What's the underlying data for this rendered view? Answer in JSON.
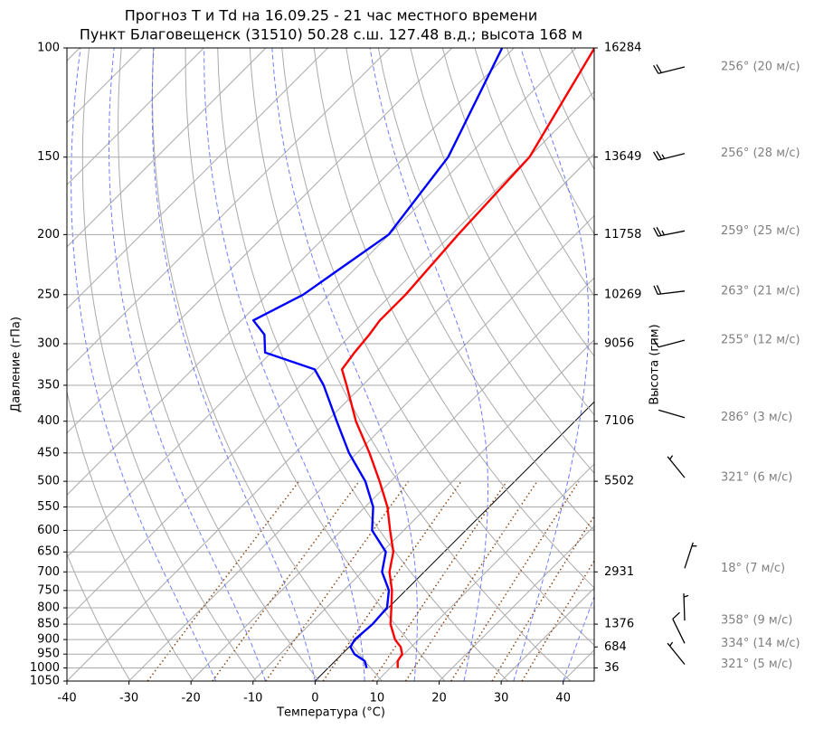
{
  "chart_data": {
    "type": "skew-t",
    "title": "Прогноз T и Td на 16.09.25 - 21 час местного времени",
    "subtitle": "Пункт Благовещенск (31510) 50.28 с.ш. 127.48 в.д.; высота 168 м",
    "x_label": "Температура (°C)",
    "y_label": "Давление (гПа)",
    "y2_label": "Высота (гпм)",
    "xlim": [
      -40,
      45
    ],
    "xticks": [
      -40,
      -30,
      -20,
      -10,
      0,
      10,
      20,
      30,
      40
    ],
    "ylim": [
      1050,
      100
    ],
    "yticks": [
      100,
      150,
      200,
      250,
      300,
      350,
      400,
      450,
      500,
      550,
      600,
      650,
      700,
      750,
      800,
      850,
      900,
      950,
      1000,
      1050
    ],
    "log_y": true,
    "grid": true,
    "pressure": [
      1000,
      975,
      950,
      925,
      900,
      850,
      800,
      750,
      700,
      650,
      600,
      550,
      500,
      450,
      400,
      350,
      330,
      310,
      290,
      275,
      250,
      200,
      150,
      100
    ],
    "series": [
      {
        "color": "#ff0000",
        "values": [
          11.2,
          10.1,
          9.7,
          8.3,
          6.2,
          3.0,
          0.5,
          -2.2,
          -5.6,
          -8.2,
          -12.2,
          -16.4,
          -21.8,
          -28,
          -35.3,
          -42.6,
          -45.9,
          -46.6,
          -47.1,
          -47.7,
          -47.7,
          -48.9,
          -49.9,
          -57
        ]
      },
      {
        "color": "#0000ff",
        "values": [
          6.2,
          4.8,
          2.0,
          0.2,
          -0.3,
          0.1,
          -0.2,
          -2.7,
          -6.8,
          -9.4,
          -15.1,
          -18.7,
          -24.1,
          -31.3,
          -38.4,
          -46.3,
          -50.3,
          -61,
          -64,
          -68.1,
          -64.2,
          -60.1,
          -63,
          -71.9
        ]
      }
    ],
    "heights": {
      "pressure": [
        100,
        150,
        200,
        250,
        300,
        400,
        500,
        700,
        850,
        925,
        1000
      ],
      "values": [
        16284,
        13649,
        11758,
        10269,
        9056,
        7106,
        5502,
        2931,
        1376,
        684,
        36
      ]
    },
    "winds": {
      "pressure": [
        100,
        150,
        200,
        250,
        300,
        400,
        500,
        700,
        850,
        925,
        1000
      ],
      "direction": [
        256,
        256,
        259,
        263,
        255,
        286,
        321,
        18,
        358,
        334,
        321
      ],
      "speed": [
        20,
        28,
        25,
        21,
        12,
        3,
        6,
        7,
        9,
        14,
        5
      ],
      "labels": [
        "256° (20 м/с)",
        "256° (28 м/с)",
        "259° (25 м/с)",
        "263° (21 м/с)",
        "255° (12 м/с)",
        "286° (3 м/с)",
        "321° (6 м/с)",
        "18° (7 м/с)",
        "358° (9 м/с)",
        "334° (14 м/с)",
        "321° (5 м/с)"
      ]
    }
  }
}
